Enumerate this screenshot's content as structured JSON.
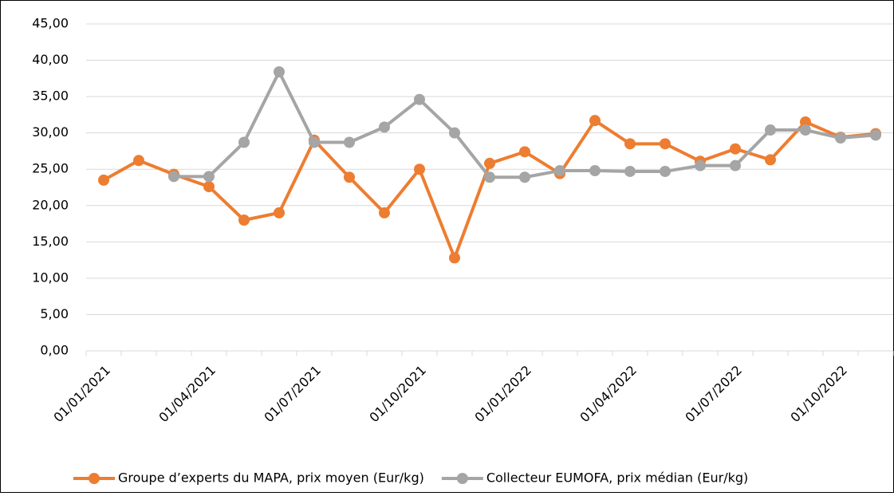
{
  "chart_data": {
    "type": "line",
    "categories": [
      "01/01/2021",
      null,
      null,
      "01/04/2021",
      null,
      null,
      "01/07/2021",
      null,
      null,
      "01/10/2021",
      null,
      null,
      "01/01/2022",
      null,
      null,
      "01/04/2022",
      null,
      null,
      "01/07/2022",
      null,
      null,
      "01/10/2022",
      null
    ],
    "series": [
      {
        "name": "Groupe d’experts du MAPA, prix moyen (Eur/kg)",
        "color": "#ed7d31",
        "values": [
          23.5,
          26.2,
          24.3,
          22.6,
          18.0,
          19.0,
          29.0,
          23.9,
          19.0,
          25.0,
          12.8,
          25.8,
          27.4,
          24.4,
          31.7,
          28.5,
          28.5,
          26.1,
          27.8,
          26.3,
          31.5,
          29.4,
          29.9
        ]
      },
      {
        "name": "Collecteur EUMOFA, prix médian (Eur/kg)",
        "color": "#a5a5a5",
        "values": [
          null,
          null,
          24.0,
          24.0,
          28.7,
          38.4,
          28.7,
          28.7,
          30.8,
          34.6,
          30.0,
          23.9,
          23.9,
          24.8,
          24.8,
          24.7,
          24.7,
          25.5,
          25.5,
          30.4,
          30.4,
          29.3,
          29.7
        ]
      }
    ],
    "ylim": [
      0,
      45
    ],
    "yticks": [
      {
        "value": 0,
        "label": "0,00"
      },
      {
        "value": 5,
        "label": "5,00"
      },
      {
        "value": 10,
        "label": "10,00"
      },
      {
        "value": 15,
        "label": "15,00"
      },
      {
        "value": 20,
        "label": "20,00"
      },
      {
        "value": 25,
        "label": "25,00"
      },
      {
        "value": 30,
        "label": "30,00"
      },
      {
        "value": 35,
        "label": "35,00"
      },
      {
        "value": 40,
        "label": "40,00"
      },
      {
        "value": 45,
        "label": "45,00"
      }
    ],
    "grid": true
  }
}
